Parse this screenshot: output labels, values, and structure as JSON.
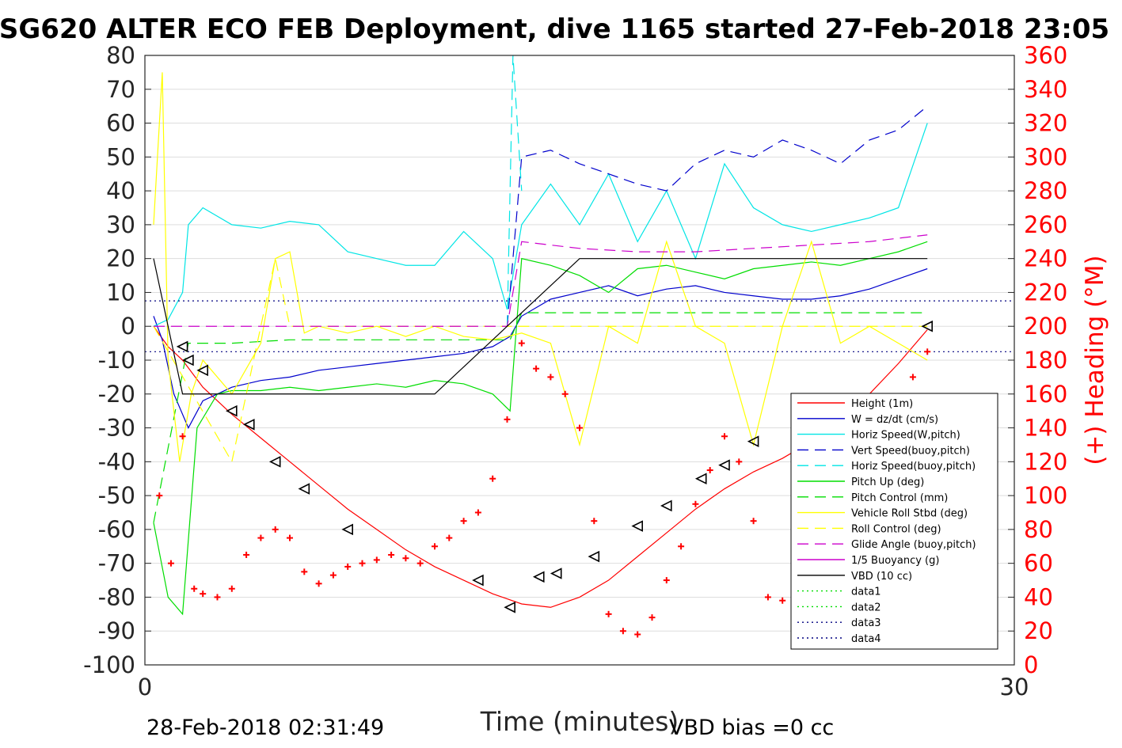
{
  "chart_data": {
    "type": "line",
    "title": "SG620 ALTER ECO FEB Deployment, dive 1165 started 27-Feb-2018 23:05",
    "xlabel": "Time (minutes)",
    "ylabel_right": "(+) Heading (°M)",
    "footer_left": "28-Feb-2018 02:31:49",
    "footer_right": "VBD bias =0 cc",
    "xlim": [
      0,
      30
    ],
    "ylim_left": [
      -100,
      80
    ],
    "ylim_right": [
      0,
      360
    ],
    "xticks": [
      0,
      30
    ],
    "yticks_left": [
      80,
      70,
      60,
      50,
      40,
      30,
      20,
      10,
      0,
      -10,
      -20,
      -30,
      -40,
      -50,
      -60,
      -70,
      -80,
      -90,
      -100
    ],
    "yticks_right": [
      360,
      340,
      320,
      300,
      280,
      260,
      240,
      220,
      200,
      180,
      160,
      140,
      120,
      100,
      80,
      60,
      40,
      20,
      0
    ],
    "grid": true,
    "legend_position": "bottom-right",
    "colors": {
      "height": "#ff0000",
      "w": "#0000cc",
      "horiz": "#00e5e5",
      "pitch": "#00dd00",
      "roll": "#ffff00",
      "glide": "#cc00cc",
      "vbd": "#000000",
      "heading": "#ff0000",
      "grid": "#dddddd"
    },
    "series": [
      {
        "name": "Height (1m)",
        "style": "solid",
        "color": "#ff0000",
        "x": [
          0.3,
          0.8,
          1.3,
          2.0,
          3.0,
          4.0,
          5.0,
          6.0,
          7.0,
          8.0,
          9.0,
          10.0,
          11.0,
          12.0,
          13.0,
          14.0,
          15.0,
          16.0,
          17.0,
          18.0,
          19.0,
          20.0,
          21.0,
          22.0,
          23.0,
          24.0,
          25.0,
          26.0,
          27.0
        ],
        "values": [
          0,
          -6,
          -10,
          -18,
          -26,
          -33,
          -40,
          -47,
          -54,
          -60,
          -66,
          -71,
          -75,
          -79,
          -82,
          -83,
          -80,
          -75,
          -68,
          -61,
          -54,
          -48,
          -43,
          -39,
          -34,
          -28,
          -20,
          -11,
          -1
        ]
      },
      {
        "name": "W = dz/dt (cm/s)",
        "style": "solid",
        "color": "#0000cc",
        "x": [
          0.3,
          0.6,
          1.0,
          1.5,
          2.0,
          3.0,
          4.0,
          5.0,
          6.0,
          7.0,
          8.0,
          9.0,
          10.0,
          11.0,
          12.0,
          12.6,
          13.0,
          14.0,
          15.0,
          16.0,
          17.0,
          18.0,
          19.0,
          20.0,
          21.0,
          22.0,
          23.0,
          24.0,
          25.0,
          26.0,
          27.0
        ],
        "values": [
          3,
          -4,
          -20,
          -30,
          -22,
          -18,
          -16,
          -15,
          -13,
          -12,
          -11,
          -10,
          -9,
          -8,
          -6,
          -3,
          3,
          8,
          10,
          12,
          9,
          11,
          12,
          10,
          9,
          8,
          8,
          9,
          11,
          14,
          17
        ]
      },
      {
        "name": "Horiz Speed(W,pitch)",
        "style": "solid",
        "color": "#00e5e5",
        "x": [
          0.3,
          0.8,
          1.3,
          1.5,
          2.0,
          3.0,
          4.0,
          5.0,
          6.0,
          7.0,
          8.0,
          9.0,
          10.0,
          11.0,
          12.0,
          12.5,
          13.0,
          14.0,
          15.0,
          16.0,
          17.0,
          18.0,
          19.0,
          20.0,
          21.0,
          22.0,
          23.0,
          24.0,
          25.0,
          26.0,
          27.0
        ],
        "values": [
          0,
          2,
          10,
          30,
          35,
          30,
          29,
          31,
          30,
          22,
          20,
          18,
          18,
          28,
          20,
          5,
          30,
          42,
          30,
          45,
          25,
          40,
          20,
          48,
          35,
          30,
          28,
          30,
          32,
          35,
          60
        ]
      },
      {
        "name": "Vert Speed(buoy,pitch)",
        "style": "dashed",
        "color": "#0000cc",
        "x": [
          12.5,
          13.0,
          14.0,
          15.0,
          16.0,
          17.0,
          18.0,
          19.0,
          20.0,
          21.0,
          22.0,
          23.0,
          24.0,
          25.0,
          26.0,
          27.0
        ],
        "values": [
          0,
          50,
          52,
          48,
          45,
          42,
          40,
          48,
          52,
          50,
          55,
          52,
          48,
          55,
          58,
          65
        ]
      },
      {
        "name": "Horiz Speed(buoy,pitch)",
        "style": "dashed",
        "color": "#00e5e5",
        "x": [
          12.5,
          12.7,
          13.0
        ],
        "values": [
          0,
          80,
          40
        ]
      },
      {
        "name": "Pitch Up (deg)",
        "style": "solid",
        "color": "#00dd00",
        "x": [
          0.3,
          0.8,
          1.3,
          1.8,
          2.5,
          3.0,
          4.0,
          5.0,
          6.0,
          7.0,
          8.0,
          9.0,
          10.0,
          11.0,
          12.0,
          12.6,
          13.0,
          14.0,
          15.0,
          16.0,
          17.0,
          18.0,
          19.0,
          20.0,
          21.0,
          22.0,
          23.0,
          24.0,
          25.0,
          26.0,
          27.0
        ],
        "values": [
          -58,
          -80,
          -85,
          -30,
          -20,
          -19,
          -19,
          -18,
          -19,
          -18,
          -17,
          -18,
          -16,
          -17,
          -20,
          -25,
          20,
          18,
          15,
          10,
          17,
          18,
          16,
          14,
          17,
          18,
          19,
          18,
          20,
          22,
          25
        ]
      },
      {
        "name": "Pitch Control (mm)",
        "style": "dashed",
        "color": "#00dd00",
        "x": [
          0.3,
          1.5,
          2.0,
          3.0,
          5.0,
          7.0,
          9.0,
          11.0,
          12.6,
          13.0,
          15.0,
          17.0,
          19.0,
          21.0,
          23.0,
          25.0,
          27.0
        ],
        "values": [
          -58,
          -5,
          -5,
          -5,
          -4,
          -4,
          -4,
          -4,
          -4,
          4,
          4,
          4,
          4,
          4,
          4,
          4,
          4
        ]
      },
      {
        "name": "Vehicle Roll Stbd (deg)",
        "style": "solid",
        "color": "#ffff00",
        "x": [
          0.3,
          0.6,
          0.8,
          1.2,
          1.6,
          2.0,
          3.0,
          4.0,
          4.5,
          5.0,
          5.5,
          6.0,
          7.0,
          8.0,
          9.0,
          10.0,
          11.0,
          12.0,
          13.0,
          14.0,
          15.0,
          16.0,
          17.0,
          18.0,
          19.0,
          20.0,
          21.0,
          22.0,
          23.0,
          24.0,
          25.0,
          26.0,
          27.0
        ],
        "values": [
          30,
          75,
          -10,
          -40,
          -20,
          -10,
          -20,
          -5,
          20,
          22,
          -2,
          0,
          -2,
          0,
          -3,
          0,
          -3,
          -4,
          -2,
          -5,
          -35,
          0,
          -5,
          25,
          0,
          -5,
          -35,
          0,
          25,
          -5,
          0,
          -5,
          -10
        ]
      },
      {
        "name": "Roll Control (deg)",
        "style": "dashed",
        "color": "#ffff00",
        "x": [
          0.3,
          3.0,
          4.5,
          5.0,
          12.0,
          14.0,
          16.0,
          18.0,
          20.0,
          22.0,
          24.0,
          27.0
        ],
        "values": [
          0,
          -40,
          20,
          0,
          0,
          0,
          0,
          0,
          0,
          0,
          0,
          0
        ]
      },
      {
        "name": "Glide Angle (buoy,pitch)",
        "style": "dashed",
        "color": "#cc00cc",
        "x": [
          0.3,
          2.0,
          4.0,
          6.0,
          8.0,
          10.0,
          12.5,
          13.0,
          15.0,
          17.0,
          19.0,
          21.0,
          23.0,
          25.0,
          27.0
        ],
        "values": [
          0,
          0,
          0,
          0,
          0,
          0,
          0,
          25,
          23,
          22,
          22,
          23,
          24,
          25,
          27
        ]
      },
      {
        "name": "1/5 Buoyancy (g)",
        "style": "solid",
        "color": "#cc00cc",
        "x": [],
        "values": []
      },
      {
        "name": "VBD (10 cc)",
        "style": "solid",
        "color": "#000000",
        "x": [
          0.3,
          1.3,
          10.0,
          12.5,
          15.0,
          27.0
        ],
        "values": [
          20,
          -20,
          -20,
          0,
          20,
          20
        ]
      },
      {
        "name": "data1",
        "style": "dotted",
        "color": "#00dd00",
        "x": [],
        "values": []
      },
      {
        "name": "data2",
        "style": "dotted",
        "color": "#00dd00",
        "x": [],
        "values": []
      },
      {
        "name": "data3",
        "style": "dotted",
        "color": "#000080",
        "x": [
          0,
          30
        ],
        "values": [
          7.5,
          7.5
        ]
      },
      {
        "name": "data4",
        "style": "dotted",
        "color": "#000080",
        "x": [
          0,
          30
        ],
        "values": [
          -7.5,
          -7.5
        ]
      }
    ],
    "heading_points": {
      "name": "Heading",
      "axis": "right",
      "x": [
        0.5,
        0.9,
        1.3,
        1.7,
        2.0,
        2.5,
        3.0,
        3.5,
        4.0,
        4.5,
        5.0,
        5.5,
        6.0,
        6.5,
        7.0,
        7.5,
        8.0,
        8.5,
        9.0,
        9.5,
        10.0,
        10.5,
        11.0,
        11.5,
        12.0,
        12.5,
        13.0,
        13.5,
        14.0,
        14.5,
        15.0,
        15.5,
        16.0,
        16.5,
        17.0,
        17.5,
        18.0,
        18.5,
        19.0,
        19.5,
        20.0,
        20.5,
        21.0,
        21.5,
        22.0,
        22.5,
        23.0,
        23.5,
        24.0,
        24.5,
        25.0,
        25.5,
        26.0,
        26.5,
        27.0
      ],
      "values": [
        100,
        60,
        135,
        45,
        42,
        40,
        45,
        65,
        75,
        80,
        75,
        55,
        48,
        53,
        58,
        60,
        62,
        65,
        63,
        60,
        70,
        75,
        85,
        90,
        110,
        145,
        190,
        175,
        170,
        160,
        140,
        85,
        30,
        20,
        18,
        28,
        50,
        70,
        95,
        115,
        135,
        120,
        85,
        40,
        38,
        40,
        38,
        60,
        75,
        95,
        110,
        130,
        150,
        170,
        185
      ]
    },
    "height_markers": {
      "x": [
        1.3,
        1.5,
        2.0,
        3.0,
        3.6,
        4.5,
        5.5,
        7.0,
        11.5,
        12.6,
        13.6,
        14.2,
        15.5,
        17.0,
        18.0,
        19.2,
        20.0,
        21.0,
        22.5,
        24.0,
        27.0
      ],
      "values": [
        -6,
        -10,
        -13,
        -25,
        -29,
        -40,
        -48,
        -60,
        -75,
        -83,
        -74,
        -73,
        -68,
        -59,
        -53,
        -45,
        -41,
        -34,
        -31,
        -22,
        0
      ]
    },
    "legend": [
      {
        "label": "Height (1m)",
        "color": "#ff0000",
        "dash": "solid"
      },
      {
        "label": "W = dz/dt (cm/s)",
        "color": "#0000cc",
        "dash": "solid"
      },
      {
        "label": "Horiz Speed(W,pitch)",
        "color": "#00e5e5",
        "dash": "solid"
      },
      {
        "label": "Vert Speed(buoy,pitch)",
        "color": "#0000cc",
        "dash": "dashed"
      },
      {
        "label": "Horiz Speed(buoy,pitch)",
        "color": "#00e5e5",
        "dash": "dashed"
      },
      {
        "label": "Pitch Up (deg)",
        "color": "#00dd00",
        "dash": "solid"
      },
      {
        "label": "Pitch Control (mm)",
        "color": "#00dd00",
        "dash": "dashed"
      },
      {
        "label": "Vehicle Roll Stbd (deg)",
        "color": "#ffff00",
        "dash": "solid"
      },
      {
        "label": "Roll Control (deg)",
        "color": "#ffff00",
        "dash": "dashed"
      },
      {
        "label": "Glide Angle (buoy,pitch)",
        "color": "#cc00cc",
        "dash": "dashed"
      },
      {
        "label": "1/5 Buoyancy (g)",
        "color": "#cc00cc",
        "dash": "solid"
      },
      {
        "label": "VBD (10 cc)",
        "color": "#000000",
        "dash": "solid"
      },
      {
        "label": "data1",
        "color": "#00dd00",
        "dash": "dotted"
      },
      {
        "label": "data2",
        "color": "#00dd00",
        "dash": "dotted"
      },
      {
        "label": "data3",
        "color": "#000080",
        "dash": "dotted"
      },
      {
        "label": "data4",
        "color": "#000080",
        "dash": "dotted"
      }
    ]
  }
}
